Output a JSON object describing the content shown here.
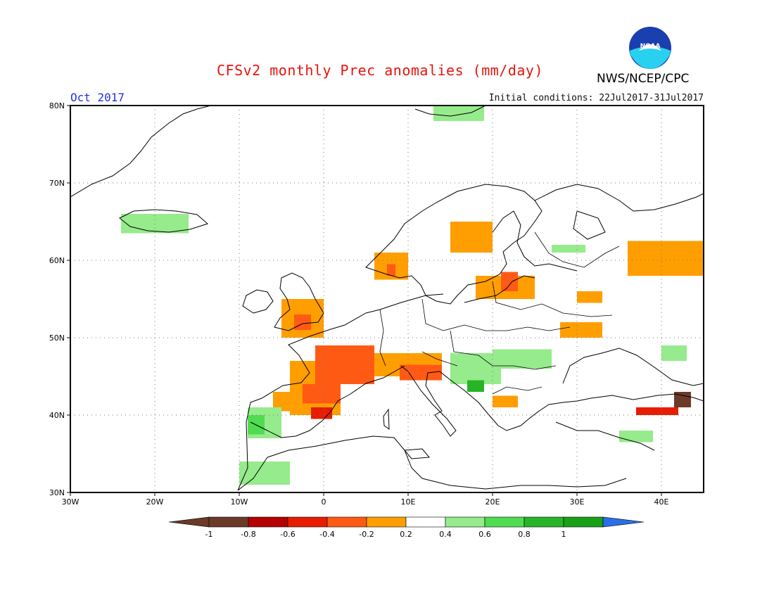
{
  "header": {
    "title": "CFSv2 monthly Prec anomalies (mm/day)",
    "agency": "NWS/NCEP/CPC",
    "logo_text": "NOAA",
    "month": "Oct 2017",
    "initial_conditions": "Initial conditions: 22Jul2017-31Jul2017"
  },
  "map": {
    "lon_range": [
      -30,
      45
    ],
    "lat_range": [
      30,
      80
    ],
    "lat_ticks": [
      "30N",
      "40N",
      "50N",
      "60N",
      "70N",
      "80N"
    ],
    "lon_ticks": [
      "30W",
      "20W",
      "10W",
      "0",
      "10E",
      "20E",
      "30E",
      "40E"
    ],
    "grid_style": "dotted"
  },
  "legend": {
    "bins": [
      {
        "label": "-1",
        "color": "#6b3a28"
      },
      {
        "label": "-0.8",
        "color": "#b40000"
      },
      {
        "label": "-0.6",
        "color": "#e81c00"
      },
      {
        "label": "-0.4",
        "color": "#ff5a14"
      },
      {
        "label": "-0.2",
        "color": "#ff9e00"
      },
      {
        "label": "0.2",
        "color": "#ffffff"
      },
      {
        "label": "0.4",
        "color": "#96eb8c"
      },
      {
        "label": "0.6",
        "color": "#50dc50"
      },
      {
        "label": "0.8",
        "color": "#28b428"
      },
      {
        "label": "1",
        "color": "#18a018"
      }
    ],
    "low_arrow_color": "#6b3a28",
    "high_arrow_color": "#2b6ee8"
  },
  "anomaly_regions": [
    {
      "lon": [
        -1,
        6
      ],
      "lat": [
        44,
        49
      ],
      "level": -0.5
    },
    {
      "lon": [
        -2.5,
        2
      ],
      "lat": [
        41.5,
        44
      ],
      "level": -0.5
    },
    {
      "lon": [
        -1.5,
        1
      ],
      "lat": [
        39.5,
        41
      ],
      "level": -0.7
    },
    {
      "lon": [
        -4,
        2
      ],
      "lat": [
        40,
        47
      ],
      "level": -0.3
    },
    {
      "lon": [
        -6,
        -3.5
      ],
      "lat": [
        40.5,
        43
      ],
      "level": -0.3
    },
    {
      "lon": [
        9,
        14
      ],
      "lat": [
        44.5,
        46.5
      ],
      "level": -0.5
    },
    {
      "lon": [
        6,
        14
      ],
      "lat": [
        45,
        48
      ],
      "level": -0.3
    },
    {
      "lon": [
        -3.5,
        -1.5
      ],
      "lat": [
        51,
        53
      ],
      "level": -0.5
    },
    {
      "lon": [
        -5,
        0
      ],
      "lat": [
        50,
        55
      ],
      "level": -0.3
    },
    {
      "lon": [
        15,
        20
      ],
      "lat": [
        61,
        65
      ],
      "level": -0.3
    },
    {
      "lon": [
        21,
        23
      ],
      "lat": [
        56,
        58.5
      ],
      "level": -0.6
    },
    {
      "lon": [
        18,
        25
      ],
      "lat": [
        55,
        58
      ],
      "level": -0.3
    },
    {
      "lon": [
        28,
        33
      ],
      "lat": [
        50,
        52
      ],
      "level": -0.3
    },
    {
      "lon": [
        30,
        33
      ],
      "lat": [
        54.5,
        56
      ],
      "level": -0.3
    },
    {
      "lon": [
        36,
        45
      ],
      "lat": [
        58,
        62.5
      ],
      "level": -0.3
    },
    {
      "lon": [
        20,
        23
      ],
      "lat": [
        41,
        42.5
      ],
      "level": -0.3
    },
    {
      "lon": [
        6,
        10
      ],
      "lat": [
        57.5,
        61
      ],
      "level": -0.3
    },
    {
      "lon": [
        7.5,
        8.5
      ],
      "lat": [
        58,
        59.5
      ],
      "level": -0.6
    },
    {
      "lon": [
        37,
        42
      ],
      "lat": [
        40,
        41
      ],
      "level": -0.7
    },
    {
      "lon": [
        41.5,
        43.5
      ],
      "lat": [
        41,
        43
      ],
      "level": -1
    },
    {
      "lon": [
        15,
        21
      ],
      "lat": [
        44,
        48
      ],
      "level": 0.3
    },
    {
      "lon": [
        17,
        19
      ],
      "lat": [
        43,
        44.5
      ],
      "level": 0.7
    },
    {
      "lon": [
        20,
        27
      ],
      "lat": [
        46,
        48.5
      ],
      "level": 0.3
    },
    {
      "lon": [
        -9,
        -7
      ],
      "lat": [
        37.5,
        40
      ],
      "level": 0.5
    },
    {
      "lon": [
        -9,
        -5
      ],
      "lat": [
        37,
        41
      ],
      "level": 0.3
    },
    {
      "lon": [
        -10,
        -4
      ],
      "lat": [
        31,
        34
      ],
      "level": 0.3
    },
    {
      "lon": [
        -24,
        -16
      ],
      "lat": [
        63.5,
        66
      ],
      "level": 0.3
    },
    {
      "lon": [
        13,
        19
      ],
      "lat": [
        78,
        80
      ],
      "level": 0.3
    },
    {
      "lon": [
        35,
        39
      ],
      "lat": [
        36.5,
        38
      ],
      "level": 0.3
    },
    {
      "lon": [
        40,
        43
      ],
      "lat": [
        47,
        49
      ],
      "level": 0.3
    },
    {
      "lon": [
        27,
        31
      ],
      "lat": [
        61,
        62
      ],
      "level": 0.3
    }
  ]
}
